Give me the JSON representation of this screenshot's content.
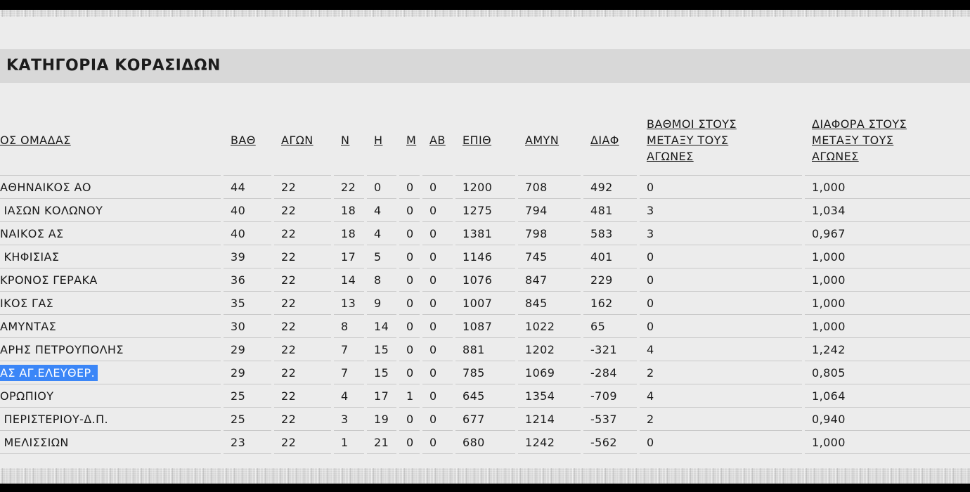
{
  "title": {
    "text": "ΚΑΤΗΓΟΡΙΑ ΚΟΡΑΣΙΔΩΝ"
  },
  "table": {
    "selection_color": "#3b86f7",
    "columns": [
      {
        "id": "team",
        "label": "ΟΣ ΟΜΑΔΑΣ"
      },
      {
        "id": "bath",
        "label": "ΒΑΘ"
      },
      {
        "id": "agon",
        "label": "ΑΓΩΝ"
      },
      {
        "id": "n",
        "label": "Ν"
      },
      {
        "id": "i",
        "label": "Η"
      },
      {
        "id": "m",
        "label": "Μ"
      },
      {
        "id": "ab",
        "label": "ΑΒ"
      },
      {
        "id": "epith",
        "label": "ΕΠΙΘ"
      },
      {
        "id": "amyn",
        "label": "ΑΜΥΝ"
      },
      {
        "id": "diaf",
        "label": "ΔΙΑΦ"
      },
      {
        "id": "h2h-points",
        "label": "ΒΑΘΜΟΙ ΣΤΟΥΣ\nΜΕΤΑΞΥ ΤΟΥΣ\nΑΓΩΝΕΣ"
      },
      {
        "id": "h2h-diff",
        "label": "ΔΙΑΦΟΡΑ ΣΤΟΥΣ\nΜΕΤΑΞΥ ΤΟΥΣ\nΑΓΩΝΕΣ"
      }
    ],
    "rows": [
      {
        "cells": [
          "ΑΘΗΝΑΙΚΟΣ ΑΟ",
          "44",
          "22",
          "22",
          "0",
          "0",
          "0",
          "1200",
          "708",
          "492",
          "0",
          "1,000"
        ]
      },
      {
        "cells": [
          " ΙΑΣΩΝ ΚΟΛΩΝΟΥ",
          "40",
          "22",
          "18",
          "4",
          "0",
          "0",
          "1275",
          "794",
          "481",
          "3",
          "1,034"
        ]
      },
      {
        "cells": [
          "ΝΑΙΚΟΣ ΑΣ",
          "40",
          "22",
          "18",
          "4",
          "0",
          "0",
          "1381",
          "798",
          "583",
          "3",
          "0,967"
        ]
      },
      {
        "cells": [
          " ΚΗΦΙΣΙΑΣ",
          "39",
          "22",
          "17",
          "5",
          "0",
          "0",
          "1146",
          "745",
          "401",
          "0",
          "1,000"
        ]
      },
      {
        "cells": [
          "ΚΡΟΝΟΣ ΓΕΡΑΚΑ",
          "36",
          "22",
          "14",
          "8",
          "0",
          "0",
          "1076",
          "847",
          "229",
          "0",
          "1,000"
        ]
      },
      {
        "cells": [
          "ΙΚΟΣ ΓΑΣ",
          "35",
          "22",
          "13",
          "9",
          "0",
          "0",
          "1007",
          "845",
          "162",
          "0",
          "1,000"
        ]
      },
      {
        "cells": [
          "ΑΜΥΝΤΑΣ",
          "30",
          "22",
          "8",
          "14",
          "0",
          "0",
          "1087",
          "1022",
          "65",
          "0",
          "1,000"
        ]
      },
      {
        "cells": [
          "ΑΡΗΣ ΠΕΤΡΟΥΠΟΛΗΣ",
          "29",
          "22",
          "7",
          "15",
          "0",
          "0",
          "881",
          "1202",
          "-321",
          "4",
          "1,242"
        ]
      },
      {
        "cells": [
          "ΑΣ ΑΓ.ΕΛΕΥΘΕΡ.",
          "29",
          "22",
          "7",
          "15",
          "0",
          "0",
          "785",
          "1069",
          "-284",
          "2",
          "0,805"
        ],
        "selected": true
      },
      {
        "cells": [
          "ΟΡΩΠΙΟΥ",
          "25",
          "22",
          "4",
          "17",
          "1",
          "0",
          "645",
          "1354",
          "-709",
          "4",
          "1,064"
        ]
      },
      {
        "cells": [
          " ΠΕΡΙΣΤΕΡΙΟΥ-Δ.Π.",
          "25",
          "22",
          "3",
          "19",
          "0",
          "0",
          "677",
          "1214",
          "-537",
          "2",
          "0,940"
        ]
      },
      {
        "cells": [
          " ΜΕΛΙΣΣΙΩΝ",
          "23",
          "22",
          "1",
          "21",
          "0",
          "0",
          "680",
          "1242",
          "-562",
          "0",
          "1,000"
        ]
      }
    ]
  }
}
